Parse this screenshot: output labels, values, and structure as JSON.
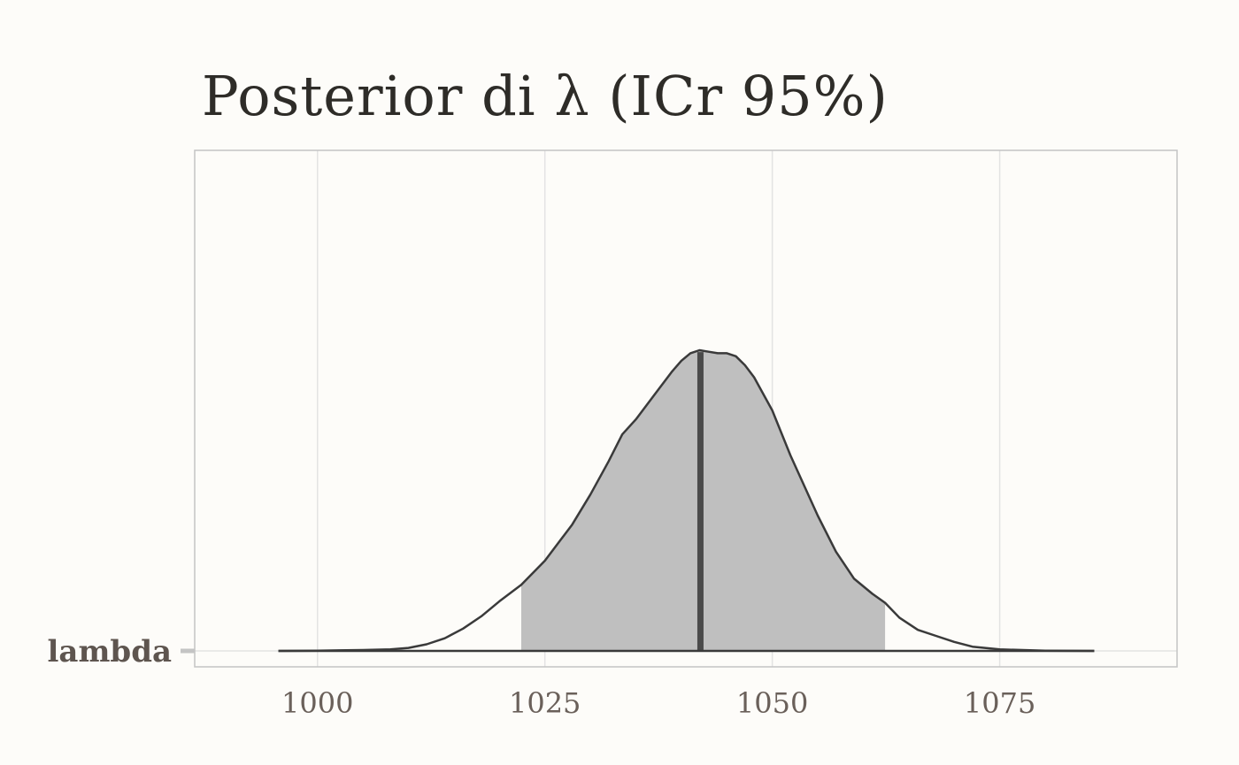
{
  "chart_data": {
    "type": "area",
    "title": "Posterior di λ (ICr 95%)",
    "xlabel": "",
    "ylabel": "",
    "parameter": "lambda",
    "xlim": [
      986.5,
      1094.5
    ],
    "xticks": [
      1000,
      1025,
      1050,
      1075
    ],
    "xtick_labels": [
      "1000",
      "1025",
      "1050",
      "1075"
    ],
    "grid": true,
    "median": 1042.1,
    "interval_95": [
      1022.4,
      1062.4
    ],
    "density": {
      "x": [
        995.7,
        1000,
        1005,
        1008,
        1010,
        1012,
        1014,
        1016,
        1018,
        1020,
        1022.4,
        1025,
        1028,
        1030,
        1032,
        1033.5,
        1035,
        1037,
        1039,
        1040,
        1041,
        1042,
        1043,
        1044,
        1045,
        1046,
        1047,
        1048,
        1050,
        1052,
        1055,
        1057,
        1059,
        1061,
        1062.4,
        1064,
        1066,
        1068,
        1070,
        1072,
        1075,
        1080,
        1085.4
      ],
      "y": [
        0.0,
        0.001,
        0.003,
        0.005,
        0.01,
        0.022,
        0.042,
        0.074,
        0.115,
        0.165,
        0.22,
        0.3,
        0.42,
        0.52,
        0.63,
        0.72,
        0.77,
        0.85,
        0.93,
        0.965,
        0.99,
        1.0,
        0.995,
        0.99,
        0.99,
        0.98,
        0.95,
        0.91,
        0.8,
        0.65,
        0.45,
        0.33,
        0.24,
        0.19,
        0.16,
        0.11,
        0.07,
        0.05,
        0.03,
        0.014,
        0.005,
        0.001,
        0.0
      ]
    },
    "colors": {
      "interval_fill": "#bfbfbf",
      "outline": "#3a3a3a",
      "median_line": "#4a4a4a",
      "grid": "#e3e3e3",
      "panel_border": "#c4c4c4",
      "background": "#fdfcf9"
    }
  }
}
